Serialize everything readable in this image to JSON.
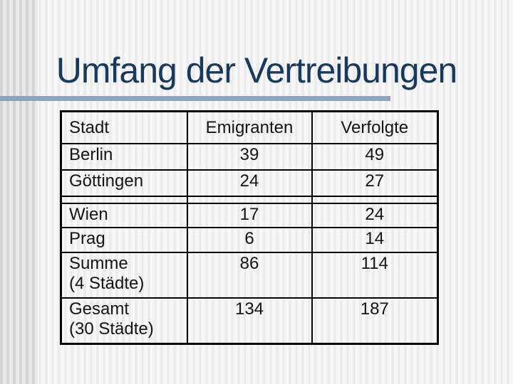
{
  "slide": {
    "title": "Umfang der Vertreibungen"
  },
  "table": {
    "headers": {
      "stadt": "Stadt",
      "emigranten": "Emigranten",
      "verfolgte": "Verfolgte"
    },
    "rows": [
      {
        "stadt": "Berlin",
        "emigranten": "39",
        "verfolgte": "49"
      },
      {
        "stadt": "Göttingen",
        "emigranten": "24",
        "verfolgte": "27"
      },
      {
        "stadt": "Wien",
        "emigranten": "17",
        "verfolgte": "24"
      },
      {
        "stadt": "Prag",
        "emigranten": "6",
        "verfolgte": "14"
      },
      {
        "stadt": "Summe",
        "stadt_sub": "(4 Städte)",
        "emigranten": "86",
        "verfolgte": "114"
      },
      {
        "stadt": "Gesamt",
        "stadt_sub": "(30 Städte)",
        "emigranten": "134",
        "verfolgte": "187"
      }
    ]
  },
  "colors": {
    "title_text": "#17395e",
    "accent_bar": "#8ea3be",
    "table_border": "#000000",
    "table_text": "#141414"
  }
}
